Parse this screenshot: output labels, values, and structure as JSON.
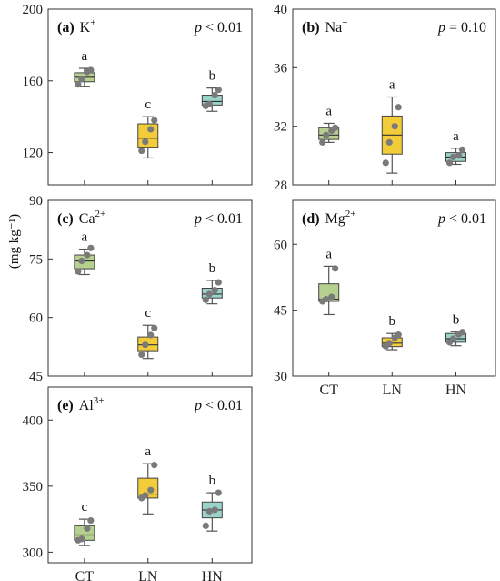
{
  "y_axis_label": "(mg kg⁻¹)",
  "colors": {
    "CT": "#b5d08f",
    "LN": "#f3cc3a",
    "HN": "#9ad3c9",
    "points": "#7a7a7a"
  },
  "chart_data": [
    {
      "id": "a",
      "type": "box",
      "panel_letter": "(a)",
      "ion": "K",
      "charge": "+",
      "p_prefix": "p",
      "p_value": "< 0.01",
      "categories": [
        "CT",
        "LN",
        "HN"
      ],
      "show_x_tick_labels": false,
      "ylim": [
        102,
        200
      ],
      "yticks": [
        120,
        160,
        200
      ],
      "groups": [
        {
          "category": "CT",
          "whisker_low": 157,
          "q1": 159.5,
          "median": 162,
          "q3": 164.5,
          "whisker_high": 167,
          "points": [
            158,
            161,
            165,
            166
          ],
          "letter": "a"
        },
        {
          "category": "LN",
          "whisker_low": 117,
          "q1": 123,
          "median": 128,
          "q3": 136,
          "whisker_high": 140,
          "points": [
            121,
            126,
            133,
            138
          ],
          "letter": "c"
        },
        {
          "category": "HN",
          "whisker_low": 143,
          "q1": 146.5,
          "median": 148.5,
          "q3": 152,
          "whisker_high": 156,
          "points": [
            146,
            147,
            152,
            155
          ],
          "letter": "b"
        }
      ]
    },
    {
      "id": "b",
      "type": "box",
      "panel_letter": "(b)",
      "ion": "Na",
      "charge": "+",
      "p_prefix": "p",
      "p_value": "= 0.10",
      "categories": [
        "CT",
        "LN",
        "HN"
      ],
      "show_x_tick_labels": false,
      "ylim": [
        28,
        40
      ],
      "yticks": [
        28,
        32,
        36,
        40
      ],
      "groups": [
        {
          "category": "CT",
          "whisker_low": 30.9,
          "q1": 31.1,
          "median": 31.4,
          "q3": 31.9,
          "whisker_high": 32.2,
          "points": [
            30.9,
            31.4,
            31.7,
            31.9
          ],
          "letter": "a"
        },
        {
          "category": "LN",
          "whisker_low": 28.8,
          "q1": 30.1,
          "median": 31.4,
          "q3": 32.7,
          "whisker_high": 34.0,
          "points": [
            29.5,
            30.9,
            32.0,
            33.3
          ],
          "letter": "a"
        },
        {
          "category": "HN",
          "whisker_low": 29.4,
          "q1": 29.6,
          "median": 29.9,
          "q3": 30.2,
          "whisker_high": 30.5,
          "points": [
            29.5,
            29.9,
            30.0,
            30.4
          ],
          "letter": "a"
        }
      ]
    },
    {
      "id": "c",
      "type": "box",
      "panel_letter": "(c)",
      "ion": "Ca",
      "charge": "2+",
      "p_prefix": "p",
      "p_value": "< 0.01",
      "categories": [
        "CT",
        "LN",
        "HN"
      ],
      "show_x_tick_labels": false,
      "ylim": [
        45,
        90
      ],
      "yticks": [
        45,
        60,
        75,
        90
      ],
      "groups": [
        {
          "category": "CT",
          "whisker_low": 71,
          "q1": 72.5,
          "median": 74.5,
          "q3": 76,
          "whisker_high": 77.5,
          "points": [
            71.8,
            74.5,
            76.0,
            77.8
          ],
          "letter": "a"
        },
        {
          "category": "LN",
          "whisker_low": 49.5,
          "q1": 51.5,
          "median": 53,
          "q3": 55,
          "whisker_high": 58,
          "points": [
            50.5,
            53.0,
            55.5,
            57.3
          ],
          "letter": "c"
        },
        {
          "category": "HN",
          "whisker_low": 63.5,
          "q1": 65,
          "median": 66,
          "q3": 67.5,
          "whisker_high": 69.5,
          "points": [
            64.5,
            66.0,
            67.0,
            69.0
          ],
          "letter": "b"
        }
      ]
    },
    {
      "id": "d",
      "type": "box",
      "panel_letter": "(d)",
      "ion": "Mg",
      "charge": "2+",
      "p_prefix": "p",
      "p_value": "< 0.01",
      "categories": [
        "CT",
        "LN",
        "HN"
      ],
      "show_x_tick_labels": true,
      "ylim": [
        30,
        70
      ],
      "yticks": [
        30,
        45,
        60
      ],
      "groups": [
        {
          "category": "CT",
          "whisker_low": 44,
          "q1": 47,
          "median": 47.5,
          "q3": 51,
          "whisker_high": 55,
          "points": [
            47.0,
            47.5,
            48.0,
            54.5
          ],
          "letter": "a"
        },
        {
          "category": "LN",
          "whisker_low": 36,
          "q1": 36.7,
          "median": 37.5,
          "q3": 38.7,
          "whisker_high": 39.7,
          "points": [
            36.8,
            37.5,
            38.7,
            39.4
          ],
          "letter": "b"
        },
        {
          "category": "HN",
          "whisker_low": 36.9,
          "q1": 37.7,
          "median": 38.5,
          "q3": 39.7,
          "whisker_high": 40.1,
          "points": [
            37.7,
            38.5,
            39.5,
            40.0
          ],
          "letter": "b"
        }
      ]
    },
    {
      "id": "e",
      "type": "box",
      "panel_letter": "(e)",
      "ion": "Al",
      "charge": "3+",
      "p_prefix": "p",
      "p_value": "< 0.01",
      "categories": [
        "CT",
        "LN",
        "HN"
      ],
      "show_x_tick_labels": true,
      "ylim": [
        292,
        425
      ],
      "yticks": [
        300,
        350,
        400
      ],
      "groups": [
        {
          "category": "CT",
          "whisker_low": 305,
          "q1": 309,
          "median": 313,
          "q3": 320,
          "whisker_high": 325,
          "points": [
            309,
            310,
            318,
            324
          ],
          "letter": "c"
        },
        {
          "category": "LN",
          "whisker_low": 329,
          "q1": 341,
          "median": 344,
          "q3": 356,
          "whisker_high": 367,
          "points": [
            341,
            343,
            347,
            366
          ],
          "letter": "a"
        },
        {
          "category": "HN",
          "whisker_low": 316,
          "q1": 326,
          "median": 332,
          "q3": 338,
          "whisker_high": 345,
          "points": [
            320,
            331,
            332,
            345
          ],
          "letter": "b"
        }
      ]
    }
  ]
}
